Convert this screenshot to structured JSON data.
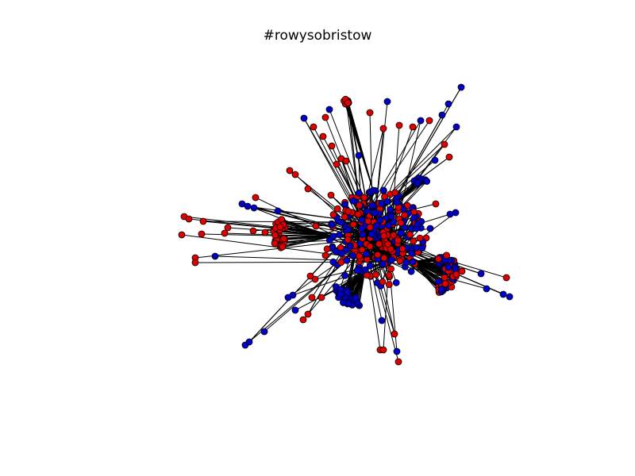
{
  "figure": {
    "title": "#rowysobristow"
  },
  "legend_colors": {
    "red": "#e00000",
    "blue": "#0000c8",
    "edge": "#000000",
    "node_outline": "#000000",
    "background": "#ffffff"
  }
}
